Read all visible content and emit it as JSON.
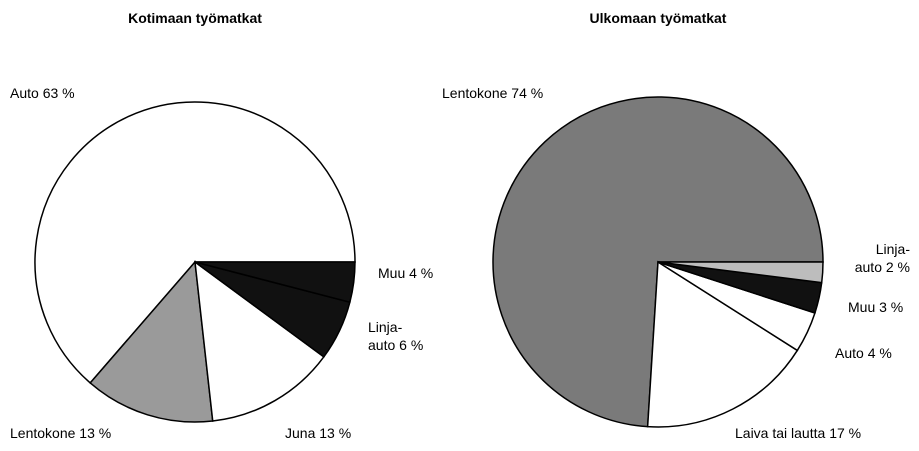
{
  "chart_data": [
    {
      "type": "pie",
      "title": "Kotimaan työmatkat",
      "categories": [
        "Auto",
        "Lentokone",
        "Juna",
        "Linja-auto",
        "Muu"
      ],
      "values": [
        63,
        13,
        13,
        6,
        4
      ],
      "value_labels": [
        "63 %",
        "13 %",
        "13 %",
        "6 %",
        "4 %"
      ],
      "colors": [
        "#ffffff",
        "#9a9a9a",
        "#ffffff",
        "#111111",
        "#111111"
      ]
    },
    {
      "type": "pie",
      "title": "Ulkomaan työmatkat",
      "categories": [
        "Lentokone",
        "Laiva tai lautta",
        "Auto",
        "Muu",
        "Linja-auto"
      ],
      "values": [
        74,
        17,
        4,
        3,
        2
      ],
      "value_labels": [
        "74 %",
        "17 %",
        "4 %",
        "3 %",
        "2 %"
      ],
      "colors": [
        "#7a7a7a",
        "#ffffff",
        "#ffffff",
        "#111111",
        "#bdbdbd"
      ]
    }
  ]
}
